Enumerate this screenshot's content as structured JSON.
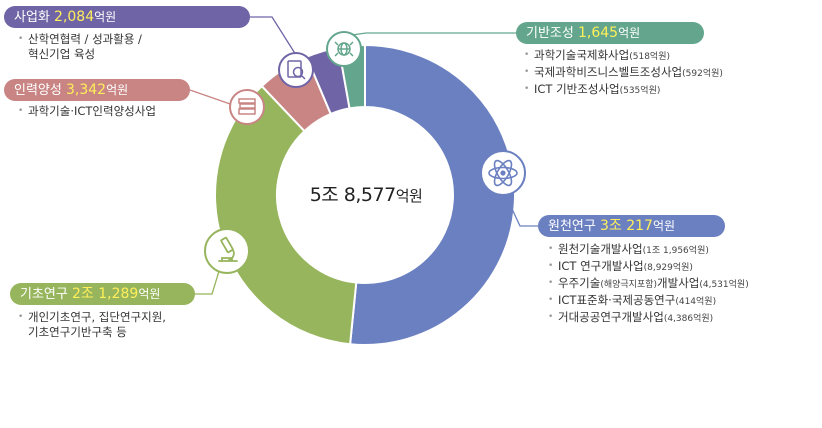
{
  "chart_data": {
    "type": "pie",
    "total_label": "5조 8,577",
    "total_unit": "억원",
    "categories": [
      "원천연구",
      "기초연구",
      "인력양성",
      "사업화",
      "기반조성"
    ],
    "values": [
      30217,
      21289,
      3342,
      2084,
      1645
    ],
    "colors": [
      "#6b80c1",
      "#97b55d",
      "#c98584",
      "#6f65a6",
      "#63a68d"
    ],
    "unit": "억원"
  },
  "segments": {
    "wonchun": {
      "name": "원천연구",
      "amount": "3조 217",
      "unit": "억원",
      "color": "#6b80c1",
      "icon": "atom-icon",
      "items": [
        {
          "text": "원천기술개발사업",
          "note": "(1조 1,956억원)"
        },
        {
          "text": "ICT 연구개발사업",
          "note": "(8,929억원)"
        },
        {
          "text": "우주기술",
          "note_mid": "(해양극지포함)",
          "text2": "개발사업",
          "note": "(4,531억원)"
        },
        {
          "text": "ICT표준화·국제공동연구",
          "note": "(414억원)"
        },
        {
          "text": "거대공공연구개발사업",
          "note": "(4,386억원)"
        }
      ]
    },
    "gicho": {
      "name": "기초연구",
      "amount": "2조 1,289",
      "unit": "억원",
      "color": "#97b55d",
      "icon": "microscope-icon",
      "items": [
        {
          "text": "개인기초연구, 집단연구지원,",
          "cont": "기초연구기반구축 등"
        }
      ]
    },
    "inryeok": {
      "name": "인력양성",
      "amount": "3,342",
      "unit": "억원",
      "color": "#c98584",
      "icon": "books-icon",
      "items": [
        {
          "text": "과학기술·ICT인력양성사업"
        }
      ]
    },
    "saeop": {
      "name": "사업화",
      "amount": "2,084",
      "unit": "억원",
      "color": "#6f65a6",
      "icon": "report-search-icon",
      "items": [
        {
          "text": "산학연협력 / 성과활용 /",
          "cont": "혁신기업 육성"
        }
      ]
    },
    "giban": {
      "name": "기반조성",
      "amount": "1,645",
      "unit": "억원",
      "color": "#63a68d",
      "icon": "globe-network-icon",
      "items": [
        {
          "text": "과학기술국제화사업",
          "note": "(518억원)"
        },
        {
          "text": "국제과학비즈니스벨트조성사업",
          "note": "(592억원)"
        },
        {
          "text": "ICT 기반조성사업",
          "note": "(535억원)"
        }
      ]
    }
  }
}
